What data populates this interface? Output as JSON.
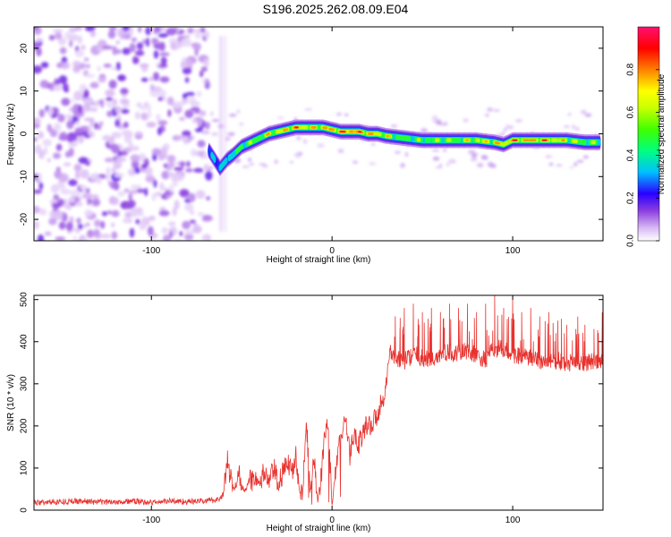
{
  "title": "S196.2025.262.08.09.E04",
  "chart_data": [
    {
      "type": "heatmap",
      "xlabel": "Height of straight line (km)",
      "ylabel": "Frequency (Hz)",
      "xlim": [
        -165,
        150
      ],
      "ylim": [
        -25,
        25
      ],
      "xticks": [
        -100,
        0,
        100
      ],
      "yticks": [
        -20,
        -10,
        0,
        10,
        20
      ],
      "colorbar": {
        "label": "Normalized spectral amplitude",
        "range": [
          0.0,
          1.0
        ],
        "ticks": [
          0.0,
          0.2,
          0.4,
          0.6,
          0.8
        ]
      },
      "noise_region_x": [
        -165,
        -68
      ],
      "ridge": {
        "x": [
          -68,
          -65,
          -62,
          -58,
          -55,
          -50,
          -45,
          -40,
          -35,
          -30,
          -25,
          -20,
          -15,
          -10,
          -5,
          0,
          5,
          10,
          15,
          20,
          25,
          30,
          40,
          50,
          60,
          70,
          80,
          90,
          95,
          100,
          110,
          120,
          130,
          140,
          148
        ],
        "freq": [
          -4,
          -6,
          -8,
          -6,
          -5,
          -3,
          -2,
          -1,
          0,
          0.5,
          1,
          1.5,
          1.5,
          1.5,
          1.5,
          1,
          0.5,
          0.5,
          0.5,
          0,
          0,
          -0.5,
          -1,
          -1.5,
          -1.5,
          -1.5,
          -1.5,
          -2,
          -2.5,
          -1.5,
          -1.5,
          -1.5,
          -1.5,
          -2,
          -2
        ],
        "amplitude": [
          0.3,
          0.4,
          0.35,
          0.45,
          0.5,
          0.55,
          0.6,
          0.65,
          0.7,
          0.75,
          0.8,
          0.85,
          0.8,
          0.75,
          0.8,
          0.9,
          0.9,
          0.95,
          0.9,
          0.85,
          0.8,
          0.7,
          0.6,
          0.55,
          0.6,
          0.65,
          0.7,
          0.75,
          0.8,
          0.9,
          0.9,
          0.85,
          0.7,
          0.6,
          0.55
        ]
      }
    },
    {
      "type": "line",
      "xlabel": "Height of straight line (km)",
      "ylabel": "SNR (10 * v/v)",
      "xlim": [
        -165,
        150
      ],
      "ylim": [
        0,
        510
      ],
      "xticks": [
        -100,
        0,
        100
      ],
      "yticks": [
        0,
        100,
        200,
        300,
        400,
        500
      ],
      "series": [
        {
          "name": "SNR",
          "color": "#e8322e",
          "x": [
            -165,
            -150,
            -140,
            -130,
            -120,
            -110,
            -100,
            -90,
            -80,
            -70,
            -65,
            -62,
            -60,
            -58,
            -56,
            -54,
            -52,
            -50,
            -48,
            -45,
            -42,
            -40,
            -38,
            -35,
            -32,
            -30,
            -28,
            -25,
            -22,
            -20,
            -18,
            -16,
            -14,
            -12,
            -10,
            -8,
            -6,
            -4,
            -2,
            0,
            2,
            4,
            6,
            8,
            10,
            12,
            15,
            18,
            20,
            22,
            25,
            28,
            30,
            32,
            35,
            40,
            45,
            50,
            55,
            60,
            65,
            70,
            75,
            80,
            85,
            90,
            95,
            100,
            105,
            110,
            115,
            120,
            125,
            130,
            135,
            140,
            145,
            150
          ],
          "values": [
            18,
            20,
            22,
            19,
            20,
            21,
            18,
            22,
            20,
            22,
            24,
            28,
            40,
            120,
            70,
            45,
            100,
            55,
            50,
            70,
            80,
            55,
            90,
            65,
            100,
            60,
            80,
            110,
            95,
            140,
            40,
            70,
            200,
            40,
            130,
            20,
            80,
            180,
            200,
            10,
            100,
            160,
            200,
            190,
            130,
            180,
            160,
            190,
            210,
            200,
            230,
            260,
            300,
            380,
            360,
            355,
            370,
            360,
            355,
            370,
            375,
            370,
            380,
            365,
            355,
            385,
            380,
            370,
            365,
            360,
            355,
            350,
            355,
            345,
            355,
            350,
            355,
            350
          ],
          "spike_peaks_x": [
            35,
            40,
            45,
            50,
            55,
            60,
            65,
            70,
            75,
            80,
            85,
            90,
            95,
            100,
            105,
            110,
            115,
            120,
            125,
            130,
            135,
            140,
            145
          ],
          "spike_peaks_y": [
            460,
            480,
            490,
            470,
            480,
            470,
            490,
            480,
            490,
            470,
            490,
            510,
            480,
            500,
            470,
            480,
            460,
            470,
            450,
            440,
            430,
            440,
            430
          ]
        }
      ]
    }
  ]
}
